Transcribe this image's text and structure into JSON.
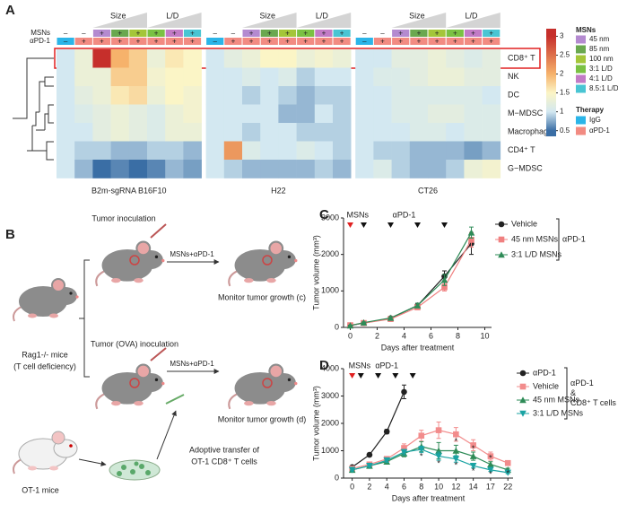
{
  "panel_labels": [
    "A",
    "B",
    "C",
    "D"
  ],
  "diagram": {
    "rag_mice": [
      "Rag1-/- mice",
      "(T cell deficiency)"
    ],
    "top": {
      "inoculation": "Tumor inoculation",
      "treatment": "MSNs+αPD-1",
      "monitor": "Monitor tumor growth (c)"
    },
    "bottom": {
      "inoculation": "Tumor (OVA) inoculation",
      "treatment": "MSNs+αPD-1",
      "monitor": "Monitor tumor growth (d)"
    },
    "transfer": [
      "Adoptive transfer of",
      "OT-1 CD8⁺ T cells"
    ],
    "donor": "OT-1 mice"
  },
  "chart_data": [
    {
      "type": "heatmap",
      "header_rows": [
        "MSNs",
        "αPD-1"
      ],
      "header_labels": [
        "Size",
        "L/D"
      ],
      "msns": [
        "–",
        "–",
        "+",
        "+",
        "+",
        "+",
        "+",
        "+"
      ],
      "apd1": [
        "–",
        "+",
        "+",
        "+",
        "+",
        "+",
        "+",
        "+"
      ],
      "msn_colors": [
        "#ffffff",
        "#ffffff",
        "#b48ad0",
        "#6aa84f",
        "#a4c639",
        "#7ac143",
        "#c27bc6",
        "#49c5d3"
      ],
      "apd1_colors": [
        "#2bb5e8",
        "#f28b82",
        "#f28b82",
        "#f28b82",
        "#f28b82",
        "#f28b82",
        "#f28b82",
        "#f28b82"
      ],
      "groups": [
        "B2m-sgRNA B16F10",
        "H22",
        "CT26"
      ],
      "rows": [
        "CD8⁺ T",
        "NK",
        "DC",
        "M−MDSC",
        "Macrophage",
        "CD4⁺ T",
        "G−MDSC"
      ],
      "values": [
        [
          1.0,
          1.3,
          3.0,
          2.0,
          1.8,
          1.3,
          1.6,
          1.5,
          1.0,
          1.2,
          1.3,
          1.5,
          1.5,
          1.3,
          1.4,
          1.3,
          1.0,
          1.0,
          1.2,
          1.2,
          1.3,
          1.2,
          1.1,
          1.2
        ],
        [
          1.0,
          1.3,
          1.3,
          1.8,
          1.8,
          1.4,
          1.5,
          1.5,
          1.0,
          1.0,
          1.1,
          1.0,
          1.1,
          0.9,
          1.0,
          1.0,
          1.0,
          1.1,
          1.1,
          1.2,
          1.3,
          1.3,
          1.2,
          1.2
        ],
        [
          1.0,
          1.2,
          1.3,
          1.6,
          1.7,
          1.3,
          1.5,
          1.4,
          1.0,
          1.0,
          0.9,
          1.0,
          0.9,
          0.8,
          0.9,
          0.9,
          1.0,
          1.0,
          1.1,
          1.1,
          1.1,
          1.1,
          1.1,
          1.0
        ],
        [
          1.0,
          1.1,
          1.2,
          1.3,
          1.2,
          1.1,
          1.3,
          1.4,
          1.0,
          1.0,
          1.0,
          1.0,
          0.8,
          0.8,
          1.0,
          0.9,
          1.0,
          1.0,
          1.1,
          1.1,
          1.2,
          1.2,
          1.1,
          1.1
        ],
        [
          1.0,
          1.0,
          1.2,
          1.3,
          1.2,
          1.1,
          1.3,
          1.3,
          1.0,
          1.0,
          0.9,
          1.0,
          1.0,
          0.9,
          0.9,
          0.9,
          1.0,
          1.0,
          1.0,
          1.1,
          1.1,
          1.0,
          1.1,
          1.1
        ],
        [
          1.0,
          0.9,
          0.9,
          0.8,
          0.8,
          0.9,
          0.9,
          0.8,
          1.0,
          2.2,
          1.1,
          1.0,
          1.0,
          1.1,
          1.0,
          0.9,
          1.0,
          0.9,
          0.9,
          0.8,
          0.8,
          0.8,
          0.7,
          0.8
        ],
        [
          1.0,
          0.8,
          0.5,
          0.6,
          0.5,
          0.6,
          0.8,
          0.7,
          1.0,
          0.9,
          0.8,
          0.8,
          0.8,
          0.8,
          0.9,
          0.8,
          1.0,
          1.1,
          0.9,
          0.8,
          0.8,
          0.9,
          1.3,
          1.4
        ]
      ],
      "colorscale": [
        {
          "value": 0.5,
          "color": "#3a6ea5"
        },
        {
          "value": 1,
          "color": "#d3e8f1"
        },
        {
          "value": 1.5,
          "color": "#fbf5c6"
        },
        {
          "value": 2,
          "color": "#f6b26b"
        },
        {
          "value": 3,
          "color": "#c62f2b"
        }
      ],
      "clim": [
        0.35,
        3.2
      ],
      "cticks": [
        0.5,
        1,
        1.5,
        2,
        2.5,
        3
      ],
      "legend_titles": [
        "MSNs",
        "Therapy"
      ],
      "msn_legend": [
        {
          "name": "45 nm",
          "color": "#b48ad0"
        },
        {
          "name": "85 nm",
          "color": "#6aa84f"
        },
        {
          "name": "100 nm",
          "color": "#a4c639"
        },
        {
          "name": "3:1 L/D",
          "color": "#7ac143"
        },
        {
          "name": "4:1 L/D",
          "color": "#c27bc6"
        },
        {
          "name": "8.5:1 L/D",
          "color": "#49c5d3"
        }
      ],
      "therapy_legend": [
        {
          "name": "IgG",
          "color": "#2bb5e8"
        },
        {
          "name": "αPD-1",
          "color": "#f28b82"
        }
      ]
    },
    {
      "type": "line",
      "xlabel": "Days after treatment",
      "ylabel": "Tumor volume (mm³)",
      "x": [
        0,
        1,
        3,
        5,
        7,
        9
      ],
      "xlim": [
        -0.5,
        10.5
      ],
      "xticks": [
        0,
        2,
        4,
        6,
        8,
        10
      ],
      "ylim": [
        0,
        3000
      ],
      "yticks": [
        0,
        1000,
        2000,
        3000
      ],
      "msn_label": "MSNs",
      "msn_days": [
        0
      ],
      "apd1_label": "αPD-1",
      "apd1_days": [
        1,
        3,
        5,
        7
      ],
      "legend_group": [
        "αPD-1"
      ],
      "series": [
        {
          "name": "Vehicle",
          "color": "#222222",
          "marker": "circle",
          "values": [
            50,
            120,
            250,
            600,
            1400,
            2300
          ],
          "errors": [
            10,
            20,
            30,
            60,
            150,
            300
          ]
        },
        {
          "name": "45 nm MSNs",
          "color": "#f08080",
          "marker": "square",
          "values": [
            60,
            120,
            230,
            550,
            1100,
            2400
          ],
          "errors": [
            10,
            20,
            30,
            50,
            100,
            200
          ]
        },
        {
          "name": "3:1 L/D MSNs",
          "color": "#2e8b57",
          "marker": "triangle",
          "values": [
            50,
            130,
            260,
            600,
            1300,
            2600
          ],
          "errors": [
            10,
            20,
            30,
            60,
            150,
            150
          ]
        }
      ]
    },
    {
      "type": "line",
      "xlabel": "Days after treatment",
      "ylabel": "Tumor volume (mm³)",
      "x": [
        0,
        2,
        4,
        6,
        8,
        10,
        12,
        14,
        17,
        22
      ],
      "xlim": [
        -1,
        23.5
      ],
      "xticks": [
        0,
        2,
        4,
        6,
        8,
        10,
        12,
        14,
        17,
        22
      ],
      "ylim": [
        0,
        4000
      ],
      "yticks": [
        0,
        1000,
        2000,
        3000,
        4000
      ],
      "msn_label": "MSNs",
      "msn_days": [
        0
      ],
      "apd1_label": "αPD-1",
      "apd1_days": [
        1,
        3,
        5,
        7
      ],
      "legend_group": [
        "αPD-1",
        "&",
        "CD8⁺ T cells"
      ],
      "series": [
        {
          "name": "αPD-1",
          "color": "#222222",
          "marker": "circle",
          "values": [
            400,
            850,
            1700,
            3150,
            null,
            null,
            null,
            null,
            null,
            null
          ],
          "errors": [
            50,
            60,
            80,
            250,
            null,
            null,
            null,
            null,
            null,
            null
          ]
        },
        {
          "name": "Vehicle",
          "color": "#f28c8c",
          "marker": "square",
          "values": [
            350,
            500,
            700,
            1100,
            1550,
            1750,
            1600,
            1200,
            800,
            550
          ],
          "errors": [
            50,
            60,
            80,
            150,
            200,
            300,
            250,
            200,
            150,
            80
          ]
        },
        {
          "name": "45 nm MSNs",
          "color": "#2e8b57",
          "marker": "triangle",
          "values": [
            300,
            450,
            600,
            900,
            1150,
            1000,
            1000,
            800,
            500,
            300
          ],
          "errors": [
            40,
            50,
            80,
            120,
            180,
            300,
            200,
            150,
            100,
            60
          ]
        },
        {
          "name": "3:1 L/D MSNs",
          "color": "#1aa3a3",
          "marker": "triangle-down",
          "values": [
            300,
            450,
            650,
            950,
            1050,
            800,
            700,
            450,
            300,
            200
          ],
          "errors": [
            40,
            50,
            70,
            100,
            120,
            150,
            120,
            80,
            60,
            40
          ]
        }
      ],
      "annotations": [
        {
          "text": "*",
          "x": 8,
          "y": 780,
          "color": "#1aa3a3"
        },
        {
          "text": "*",
          "x": 10,
          "y": 520,
          "color": "#1aa3a3"
        },
        {
          "text": "*",
          "x": 12,
          "y": 450,
          "color": "#1aa3a3"
        },
        {
          "text": "*",
          "x": 14,
          "y": 250,
          "color": "#1aa3a3"
        },
        {
          "text": "*",
          "x": 17,
          "y": 120,
          "color": "#1aa3a3"
        },
        {
          "text": "*",
          "x": 12,
          "y": 1320,
          "color": "#2e8b57"
        },
        {
          "text": "*",
          "x": 14,
          "y": 1060,
          "color": "#2e8b57"
        },
        {
          "text": "*",
          "x": 17,
          "y": 720,
          "color": "#2e8b57"
        },
        {
          "text": "*",
          "x": 22,
          "y": 160,
          "color": "#2e8b57"
        }
      ]
    }
  ]
}
